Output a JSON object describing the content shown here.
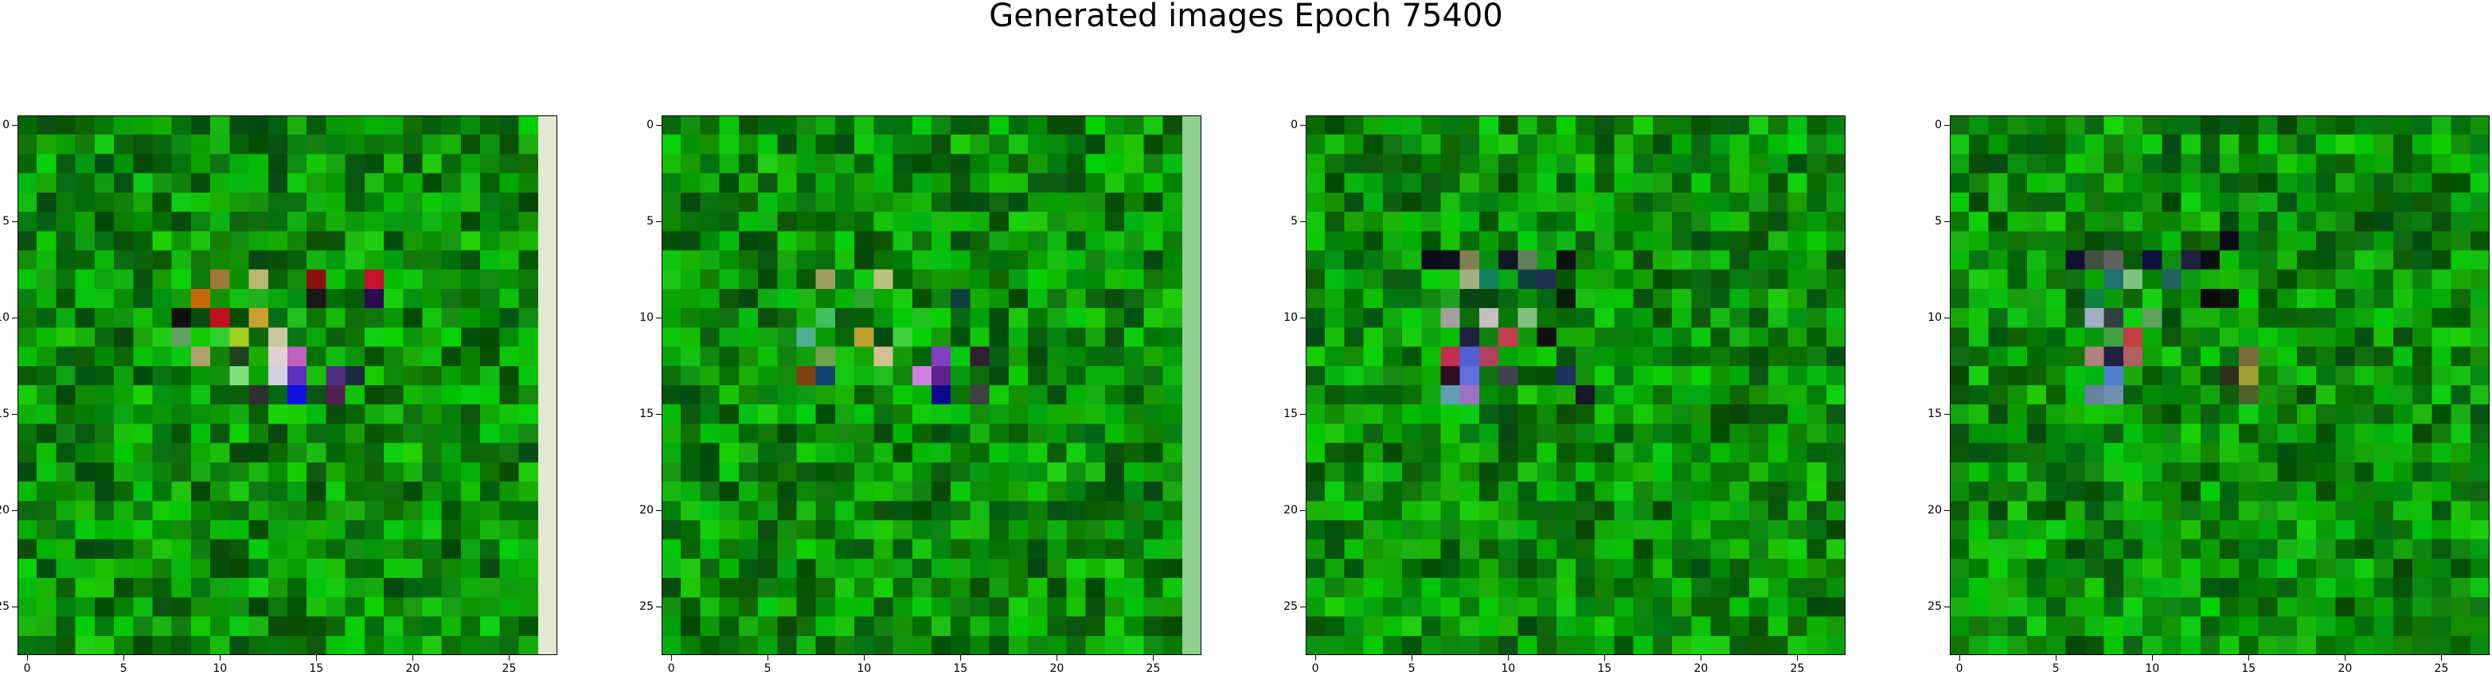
{
  "title": "Generated images Epoch 75400",
  "chart_data": [
    {
      "type": "heatmap",
      "title": "",
      "xlabel": "",
      "ylabel": "",
      "xlim": [
        -0.5,
        27.5
      ],
      "ylim": [
        27.5,
        -0.5
      ],
      "xticks": [
        0,
        5,
        10,
        15,
        20,
        25
      ],
      "yticks": [
        0,
        5,
        10,
        15,
        20,
        25
      ],
      "size": [
        28,
        28
      ],
      "seed": 11,
      "right_column": "#e2e8d2",
      "spots": [
        [
          8,
          10,
          "#9c7a3a"
        ],
        [
          8,
          12,
          "#b8b870"
        ],
        [
          8,
          15,
          "#8a1010"
        ],
        [
          8,
          18,
          "#c81030"
        ],
        [
          9,
          9,
          "#c86a0a"
        ],
        [
          9,
          12,
          "#20b020"
        ],
        [
          9,
          15,
          "#181818"
        ],
        [
          9,
          18,
          "#2a0a50"
        ],
        [
          10,
          8,
          "#101010"
        ],
        [
          10,
          10,
          "#c01020"
        ],
        [
          10,
          12,
          "#c8a030"
        ],
        [
          10,
          14,
          "#20c020"
        ],
        [
          11,
          8,
          "#60a060"
        ],
        [
          11,
          10,
          "#30d030"
        ],
        [
          11,
          11,
          "#a0d020"
        ],
        [
          11,
          13,
          "#c8c8a0"
        ],
        [
          12,
          9,
          "#b0a070"
        ],
        [
          12,
          11,
          "#204020"
        ],
        [
          12,
          13,
          "#e0d0d0"
        ],
        [
          12,
          14,
          "#c060c0"
        ],
        [
          13,
          11,
          "#80e080"
        ],
        [
          13,
          13,
          "#d0d0e0"
        ],
        [
          13,
          14,
          "#6030c0"
        ],
        [
          13,
          16,
          "#503080"
        ],
        [
          14,
          12,
          "#303030"
        ],
        [
          14,
          14,
          "#1010e0"
        ],
        [
          14,
          16,
          "#502050"
        ],
        [
          13,
          17,
          "#1a2a40"
        ]
      ]
    },
    {
      "type": "heatmap",
      "title": "",
      "xlabel": "",
      "ylabel": "",
      "xlim": [
        -0.5,
        27.5
      ],
      "ylim": [
        27.5,
        -0.5
      ],
      "xticks": [
        0,
        5,
        10,
        15,
        20,
        25
      ],
      "yticks": [
        0,
        5,
        10,
        15,
        20,
        25
      ],
      "size": [
        28,
        28
      ],
      "seed": 23,
      "right_column": "#90d090",
      "spots": [
        [
          8,
          8,
          "#a0a060"
        ],
        [
          8,
          11,
          "#c0c080"
        ],
        [
          9,
          10,
          "#30a030"
        ],
        [
          10,
          8,
          "#40c060"
        ],
        [
          11,
          7,
          "#50b090"
        ],
        [
          11,
          10,
          "#c0a030"
        ],
        [
          11,
          12,
          "#40d040"
        ],
        [
          12,
          8,
          "#70a050"
        ],
        [
          12,
          11,
          "#d0c090"
        ],
        [
          12,
          14,
          "#8040c0"
        ],
        [
          13,
          7,
          "#804010"
        ],
        [
          13,
          8,
          "#104070"
        ],
        [
          13,
          11,
          "#20c020"
        ],
        [
          13,
          13,
          "#d080e0"
        ],
        [
          13,
          14,
          "#602090"
        ],
        [
          14,
          14,
          "#0a0a90"
        ],
        [
          14,
          16,
          "#404040"
        ],
        [
          9,
          15,
          "#104040"
        ],
        [
          10,
          13,
          "#20c020"
        ],
        [
          12,
          16,
          "#302030"
        ]
      ]
    },
    {
      "type": "heatmap",
      "title": "",
      "xlabel": "",
      "ylabel": "",
      "xlim": [
        -0.5,
        27.5
      ],
      "ylim": [
        27.5,
        -0.5
      ],
      "xticks": [
        0,
        5,
        10,
        15,
        20,
        25
      ],
      "yticks": [
        0,
        5,
        10,
        15,
        20,
        25
      ],
      "size": [
        28,
        28
      ],
      "seed": 37,
      "right_column": null,
      "spots": [
        [
          7,
          6,
          "#0a0a18"
        ],
        [
          7,
          7,
          "#101020"
        ],
        [
          7,
          8,
          "#808050"
        ],
        [
          7,
          10,
          "#101820"
        ],
        [
          7,
          11,
          "#608060"
        ],
        [
          7,
          13,
          "#101010"
        ],
        [
          8,
          8,
          "#a0b080"
        ],
        [
          8,
          9,
          "#108060"
        ],
        [
          8,
          11,
          "#104040"
        ],
        [
          8,
          12,
          "#203050"
        ],
        [
          9,
          7,
          "#20a020"
        ],
        [
          10,
          7,
          "#a0a0a0"
        ],
        [
          10,
          9,
          "#c0c0c0"
        ],
        [
          10,
          11,
          "#80c080"
        ],
        [
          11,
          10,
          "#c04050"
        ],
        [
          11,
          8,
          "#202040"
        ],
        [
          12,
          7,
          "#c03050"
        ],
        [
          12,
          8,
          "#5060d0"
        ],
        [
          12,
          9,
          "#b04060"
        ],
        [
          13,
          7,
          "#301020"
        ],
        [
          13,
          8,
          "#6070e0"
        ],
        [
          13,
          10,
          "#404050"
        ],
        [
          14,
          7,
          "#60a0b0"
        ],
        [
          14,
          8,
          "#a070c0"
        ],
        [
          13,
          13,
          "#203060"
        ],
        [
          14,
          14,
          "#181828"
        ],
        [
          11,
          12,
          "#101010"
        ],
        [
          9,
          13,
          "#0a1a0a"
        ]
      ]
    },
    {
      "type": "heatmap",
      "title": "",
      "xlabel": "",
      "ylabel": "",
      "xlim": [
        -0.5,
        27.5
      ],
      "ylim": [
        27.5,
        -0.5
      ],
      "xticks": [
        0,
        5,
        10,
        15,
        20,
        25
      ],
      "yticks": [
        0,
        5,
        10,
        15,
        20,
        25
      ],
      "size": [
        28,
        28
      ],
      "seed": 51,
      "right_column": null,
      "spots": [
        [
          7,
          6,
          "#101030"
        ],
        [
          7,
          7,
          "#405040"
        ],
        [
          7,
          8,
          "#606060"
        ],
        [
          7,
          10,
          "#101040"
        ],
        [
          7,
          12,
          "#202040"
        ],
        [
          7,
          13,
          "#0a1010"
        ],
        [
          6,
          14,
          "#0a0a18"
        ],
        [
          8,
          8,
          "#207070"
        ],
        [
          8,
          9,
          "#80c080"
        ],
        [
          8,
          11,
          "#206060"
        ],
        [
          9,
          7,
          "#108040"
        ],
        [
          9,
          14,
          "#0a1a0a"
        ],
        [
          10,
          7,
          "#a0b0c0"
        ],
        [
          10,
          8,
          "#304040"
        ],
        [
          10,
          10,
          "#60a060"
        ],
        [
          11,
          9,
          "#c04040"
        ],
        [
          11,
          8,
          "#40a040"
        ],
        [
          12,
          7,
          "#b08080"
        ],
        [
          12,
          8,
          "#202040"
        ],
        [
          12,
          9,
          "#b06060"
        ],
        [
          13,
          8,
          "#5080d0"
        ],
        [
          14,
          8,
          "#7090b0"
        ],
        [
          14,
          7,
          "#6a80a0"
        ],
        [
          12,
          15,
          "#7a6a3a"
        ],
        [
          13,
          15,
          "#a0a030"
        ],
        [
          13,
          14,
          "#303020"
        ],
        [
          14,
          15,
          "#50602a"
        ],
        [
          9,
          13,
          "#0a0a0a"
        ]
      ]
    }
  ]
}
